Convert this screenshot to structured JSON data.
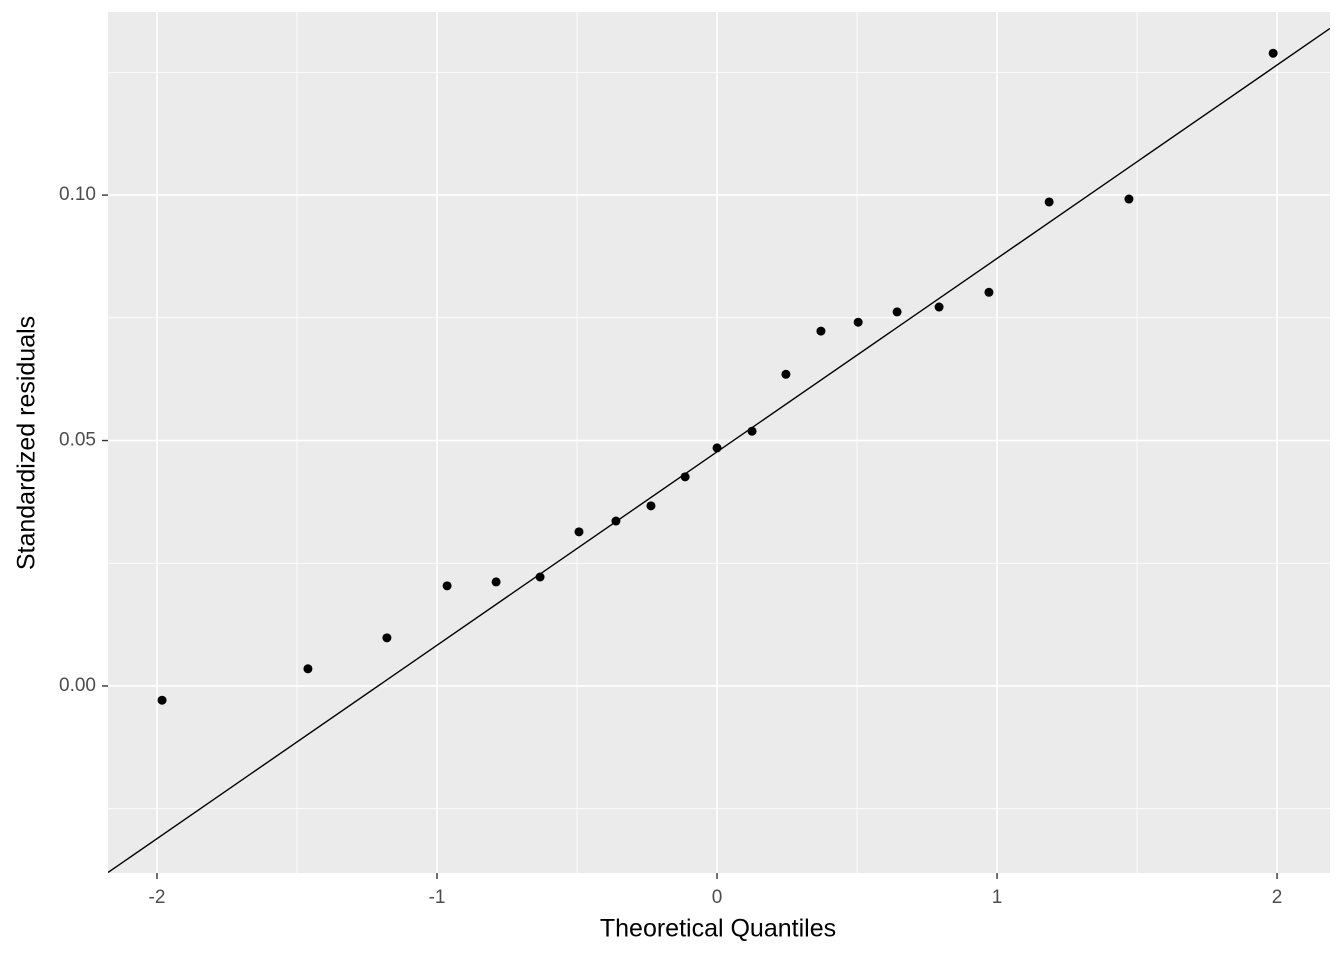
{
  "chart_data": {
    "type": "scatter",
    "xlabel": "Theoretical Quantiles",
    "ylabel": "Standardized residuals",
    "x": [
      -1.982,
      -1.461,
      -1.179,
      -0.964,
      -0.789,
      -0.632,
      -0.493,
      -0.361,
      -0.236,
      -0.114,
      0,
      0.125,
      0.246,
      0.371,
      0.504,
      0.643,
      0.793,
      0.971,
      1.186,
      1.471,
      1.986
    ],
    "values": [
      -0.0029,
      0.0035,
      0.0098,
      0.0204,
      0.0212,
      0.0222,
      0.0314,
      0.0336,
      0.0367,
      0.0426,
      0.0485,
      0.0519,
      0.0635,
      0.0723,
      0.0741,
      0.0762,
      0.0772,
      0.0802,
      0.0986,
      0.0992,
      0.1289
    ],
    "color": "#000000",
    "reference_line": {
      "intercept": 0.0477,
      "slope": 0.0394,
      "color": "#000000"
    },
    "xlim": [
      -2.175,
      2.189
    ],
    "ylim": [
      -0.0381,
      0.1373
    ],
    "xticks": [
      -2,
      -1,
      0,
      1,
      2
    ],
    "yticks": [
      {
        "value": 0,
        "label": "0.00"
      },
      {
        "value": 0.05,
        "label": "0.05"
      },
      {
        "value": 0.1,
        "label": "0.10"
      }
    ],
    "minor_xticks": [
      -1.5,
      -0.5,
      0.5,
      1.5
    ],
    "minor_yticks": [
      -0.025,
      0.025,
      0.075,
      0.125
    ],
    "grid": true
  }
}
